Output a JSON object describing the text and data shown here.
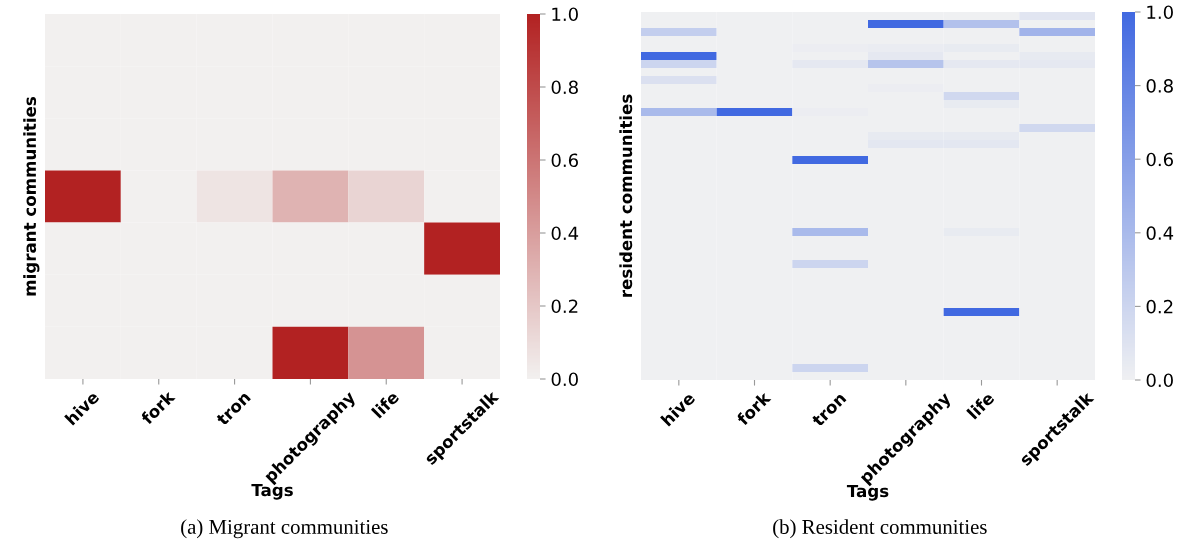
{
  "chart_data": [
    {
      "type": "heatmap",
      "xlabel": "Tags",
      "ylabel": "migrant communities",
      "annotations": [
        "(a) Migrant communities"
      ],
      "tick_labels": "x",
      "categories": [
        "hive",
        "fork",
        "tron",
        "photography",
        "life",
        "sportstalk"
      ],
      "y_categories": [
        null,
        null,
        null,
        null,
        null,
        null,
        null
      ],
      "colors": [
        "#f2f0ef",
        "#b22222"
      ],
      "clim": [
        0,
        1
      ],
      "cticks": [
        {
          "value": 0,
          "label": "0.0"
        },
        {
          "value": 0.2,
          "label": "0.2"
        },
        {
          "value": 0.4,
          "label": "0.4"
        },
        {
          "value": 0.6,
          "label": "0.6"
        },
        {
          "value": 0.8,
          "label": "0.8"
        },
        {
          "value": 1,
          "label": "1.0"
        }
      ],
      "cells": [
        [
          0,
          0,
          0,
          0,
          0,
          0
        ],
        [
          0,
          0,
          0,
          0,
          0,
          0
        ],
        [
          0,
          0,
          0,
          0,
          0,
          0
        ],
        [
          1.0,
          0,
          0.06,
          0.3,
          0.14,
          0
        ],
        [
          0,
          0,
          0,
          0,
          0,
          1.0
        ],
        [
          0,
          0,
          0,
          0,
          0,
          0
        ],
        [
          0,
          0,
          0,
          1.0,
          0.45,
          0
        ]
      ]
    },
    {
      "type": "heatmap",
      "xlabel": "Tags",
      "ylabel": "resident communities",
      "annotations": [
        "(b) Resident communities"
      ],
      "tick_labels": "x",
      "categories": [
        "hive",
        "fork",
        "tron",
        "photography",
        "life",
        "sportstalk"
      ],
      "y_categories": [
        null,
        null,
        null,
        null,
        null,
        null,
        null,
        null,
        null,
        null,
        null,
        null,
        null,
        null,
        null,
        null,
        null,
        null,
        null,
        null,
        null,
        null,
        null,
        null,
        null,
        null,
        null,
        null,
        null,
        null,
        null,
        null,
        null,
        null,
        null,
        null,
        null,
        null,
        null,
        null,
        null,
        null,
        null,
        null,
        null,
        null
      ],
      "colors": [
        "#eff0f2",
        "#4169e1"
      ],
      "clim": [
        0,
        1
      ],
      "cticks": [
        {
          "value": 0,
          "label": "0.0"
        },
        {
          "value": 0.2,
          "label": "0.2"
        },
        {
          "value": 0.4,
          "label": "0.4"
        },
        {
          "value": 0.6,
          "label": "0.6"
        },
        {
          "value": 0.8,
          "label": "0.8"
        },
        {
          "value": 1,
          "label": "1.0"
        }
      ],
      "cells": [
        [
          0,
          0,
          0,
          0,
          0,
          0.08
        ],
        [
          0,
          0,
          0,
          1.0,
          0.35,
          0
        ],
        [
          0.25,
          0,
          0,
          0,
          0,
          0.45
        ],
        [
          0,
          0,
          0,
          0,
          0,
          0
        ],
        [
          0,
          0,
          0.02,
          0.03,
          0.04,
          0
        ],
        [
          1.0,
          0,
          0,
          0.06,
          0,
          0.05
        ],
        [
          0.2,
          0,
          0.06,
          0.33,
          0.06,
          0.06
        ],
        [
          0,
          0,
          0,
          0,
          0,
          0
        ],
        [
          0.12,
          0,
          0,
          0,
          0,
          0
        ],
        [
          0,
          0,
          0,
          0.02,
          0,
          0
        ],
        [
          0,
          0,
          0,
          0,
          0.18,
          0
        ],
        [
          0,
          0,
          0,
          0,
          0.04,
          0
        ],
        [
          0.4,
          1.0,
          0.02,
          0,
          0,
          0
        ],
        [
          0,
          0,
          0,
          0,
          0,
          0
        ],
        [
          0,
          0,
          0,
          0,
          0,
          0.18
        ],
        [
          0,
          0,
          0,
          0.05,
          0.05,
          0
        ],
        [
          0,
          0,
          0,
          0.07,
          0.07,
          0
        ],
        [
          0,
          0,
          0,
          0,
          0,
          0
        ],
        [
          0,
          0,
          1.0,
          0,
          0,
          0
        ],
        [
          0,
          0,
          0,
          0,
          0,
          0
        ],
        [
          0,
          0,
          0,
          0,
          0,
          0
        ],
        [
          0,
          0,
          0,
          0,
          0,
          0
        ],
        [
          0,
          0,
          0,
          0,
          0,
          0
        ],
        [
          0,
          0,
          0,
          0,
          0,
          0
        ],
        [
          0,
          0,
          0,
          0,
          0,
          0
        ],
        [
          0,
          0,
          0,
          0,
          0,
          0
        ],
        [
          0,
          0,
          0,
          0,
          0,
          0
        ],
        [
          0,
          0,
          0.4,
          0,
          0.04,
          0
        ],
        [
          0,
          0,
          0,
          0,
          0,
          0
        ],
        [
          0,
          0,
          0,
          0,
          0,
          0
        ],
        [
          0,
          0,
          0,
          0,
          0,
          0
        ],
        [
          0,
          0,
          0.2,
          0,
          0,
          0
        ],
        [
          0,
          0,
          0,
          0,
          0,
          0
        ],
        [
          0,
          0,
          0,
          0,
          0,
          0
        ],
        [
          0,
          0,
          0,
          0,
          0,
          0
        ],
        [
          0,
          0,
          0,
          0,
          0,
          0
        ],
        [
          0,
          0,
          0,
          0,
          0,
          0
        ],
        [
          0,
          0,
          0,
          0,
          1.0,
          0
        ],
        [
          0,
          0,
          0,
          0,
          0,
          0
        ],
        [
          0,
          0,
          0,
          0,
          0,
          0
        ],
        [
          0,
          0,
          0,
          0,
          0,
          0
        ],
        [
          0,
          0,
          0,
          0,
          0,
          0
        ],
        [
          0,
          0,
          0,
          0,
          0,
          0
        ],
        [
          0,
          0,
          0,
          0,
          0,
          0
        ],
        [
          0,
          0,
          0.2,
          0,
          0,
          0
        ],
        [
          0,
          0,
          0,
          0,
          0,
          0
        ]
      ]
    }
  ]
}
